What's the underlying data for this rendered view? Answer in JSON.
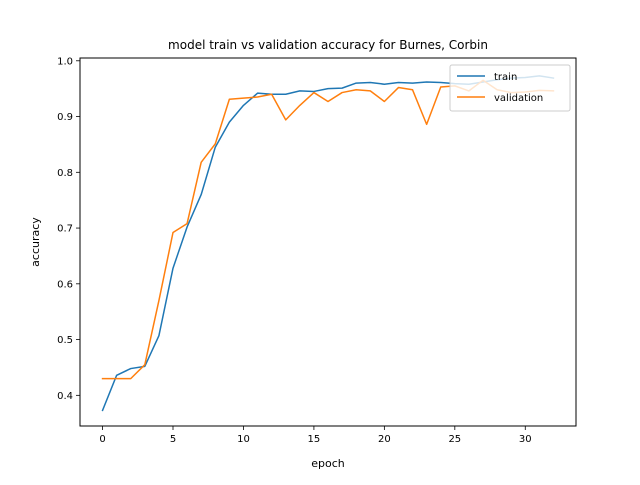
{
  "chart_data": {
    "type": "line",
    "title": "model train vs validation accuracy for Burnes, Corbin",
    "xlabel": "epoch",
    "ylabel": "accuracy",
    "xlim": [
      -1.6,
      33.6
    ],
    "ylim": [
      0.345,
      1.005
    ],
    "xticks": [
      0,
      5,
      10,
      15,
      20,
      25,
      30
    ],
    "yticks": [
      0.4,
      0.5,
      0.6,
      0.7,
      0.8,
      0.9,
      1.0
    ],
    "grid": false,
    "legend_position": "top-right",
    "x": [
      0,
      1,
      2,
      3,
      4,
      5,
      6,
      7,
      8,
      9,
      10,
      11,
      12,
      13,
      14,
      15,
      16,
      17,
      18,
      19,
      20,
      21,
      22,
      23,
      24,
      25,
      26,
      27,
      28,
      29,
      30,
      31,
      32
    ],
    "series": [
      {
        "name": "train",
        "color": "#1f77b4",
        "values": [
          0.373,
          0.436,
          0.448,
          0.452,
          0.507,
          0.628,
          0.702,
          0.76,
          0.845,
          0.89,
          0.92,
          0.942,
          0.94,
          0.94,
          0.946,
          0.945,
          0.95,
          0.951,
          0.96,
          0.961,
          0.958,
          0.961,
          0.96,
          0.962,
          0.961,
          0.959,
          0.958,
          0.962,
          0.966,
          0.969,
          0.97,
          0.973,
          0.969
        ]
      },
      {
        "name": "validation",
        "color": "#ff7f0e",
        "values": [
          0.43,
          0.43,
          0.43,
          0.455,
          0.57,
          0.692,
          0.708,
          0.818,
          0.851,
          0.931,
          0.933,
          0.935,
          0.94,
          0.894,
          0.92,
          0.943,
          0.927,
          0.943,
          0.948,
          0.946,
          0.927,
          0.952,
          0.948,
          0.886,
          0.953,
          0.955,
          0.946,
          0.965,
          0.948,
          0.943,
          0.944,
          0.947,
          0.946
        ]
      }
    ]
  }
}
